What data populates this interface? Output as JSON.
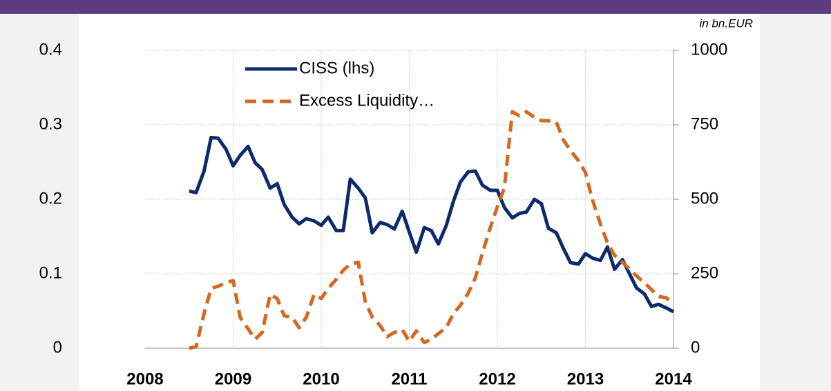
{
  "chart_data": {
    "type": "line",
    "annotation": "in bn.EUR",
    "x": [
      2008.5,
      2008.58,
      2008.67,
      2008.75,
      2008.83,
      2008.92,
      2009,
      2009.08,
      2009.17,
      2009.25,
      2009.33,
      2009.42,
      2009.5,
      2009.58,
      2009.67,
      2009.75,
      2009.83,
      2009.92,
      2010,
      2010.08,
      2010.17,
      2010.25,
      2010.33,
      2010.42,
      2010.5,
      2010.58,
      2010.67,
      2010.75,
      2010.83,
      2010.92,
      2011,
      2011.08,
      2011.17,
      2011.25,
      2011.33,
      2011.42,
      2011.5,
      2011.58,
      2011.67,
      2011.75,
      2011.83,
      2011.92,
      2012,
      2012.08,
      2012.17,
      2012.25,
      2012.33,
      2012.42,
      2012.5,
      2012.58,
      2012.67,
      2012.75,
      2012.83,
      2012.92,
      2013,
      2013.08,
      2013.17,
      2013.25,
      2013.33,
      2013.42,
      2013.5,
      2013.58,
      2013.67,
      2013.75,
      2013.83,
      2013.92,
      2014
    ],
    "series": [
      {
        "name": "CISS (lhs)",
        "color": "#0d2a6b",
        "values": [
          0.211,
          0.209,
          0.238,
          0.283,
          0.282,
          0.267,
          0.245,
          0.259,
          0.271,
          0.249,
          0.24,
          0.215,
          0.221,
          0.193,
          0.176,
          0.167,
          0.174,
          0.171,
          0.165,
          0.176,
          0.158,
          0.158,
          0.227,
          0.215,
          0.202,
          0.155,
          0.169,
          0.166,
          0.16,
          0.184,
          0.156,
          0.129,
          0.162,
          0.158,
          0.14,
          0.165,
          0.197,
          0.223,
          0.237,
          0.238,
          0.219,
          0.212,
          0.212,
          0.189,
          0.175,
          0.181,
          0.183,
          0.2,
          0.194,
          0.161,
          0.155,
          0.134,
          0.115,
          0.113,
          0.127,
          0.121,
          0.118,
          0.136,
          0.106,
          0.119,
          0.1,
          0.081,
          0.073,
          0.056,
          0.059,
          0.054,
          0.049
        ]
      },
      {
        "name": "Excess Liquidity…",
        "color": "#d2691e",
        "axis": "y2",
        "dashed": true,
        "values": [
          0,
          5,
          116,
          201,
          208,
          220,
          227,
          104,
          65,
          30,
          53,
          181,
          167,
          109,
          104,
          69,
          104,
          181,
          167,
          201,
          231,
          262,
          282,
          289,
          157,
          104,
          76,
          39,
          53,
          63,
          23,
          58,
          19,
          30,
          49,
          69,
          116,
          144,
          185,
          236,
          319,
          405,
          475,
          539,
          794,
          780,
          794,
          775,
          764,
          764,
          759,
          699,
          664,
          630,
          590,
          498,
          417,
          354,
          312,
          289,
          266,
          243,
          220,
          197,
          174,
          169,
          150
        ]
      }
    ],
    "xlim": [
      2008,
      2014
    ],
    "xticks": [
      2008,
      2009,
      2010,
      2011,
      2012,
      2013,
      2014
    ],
    "ylim": [
      0,
      0.4
    ],
    "yticks": [
      0,
      0.1,
      0.2,
      0.3,
      0.4
    ],
    "y2lim": [
      0,
      1000
    ],
    "y2ticks": [
      0,
      250,
      500,
      750,
      1000
    ],
    "grid": true
  }
}
